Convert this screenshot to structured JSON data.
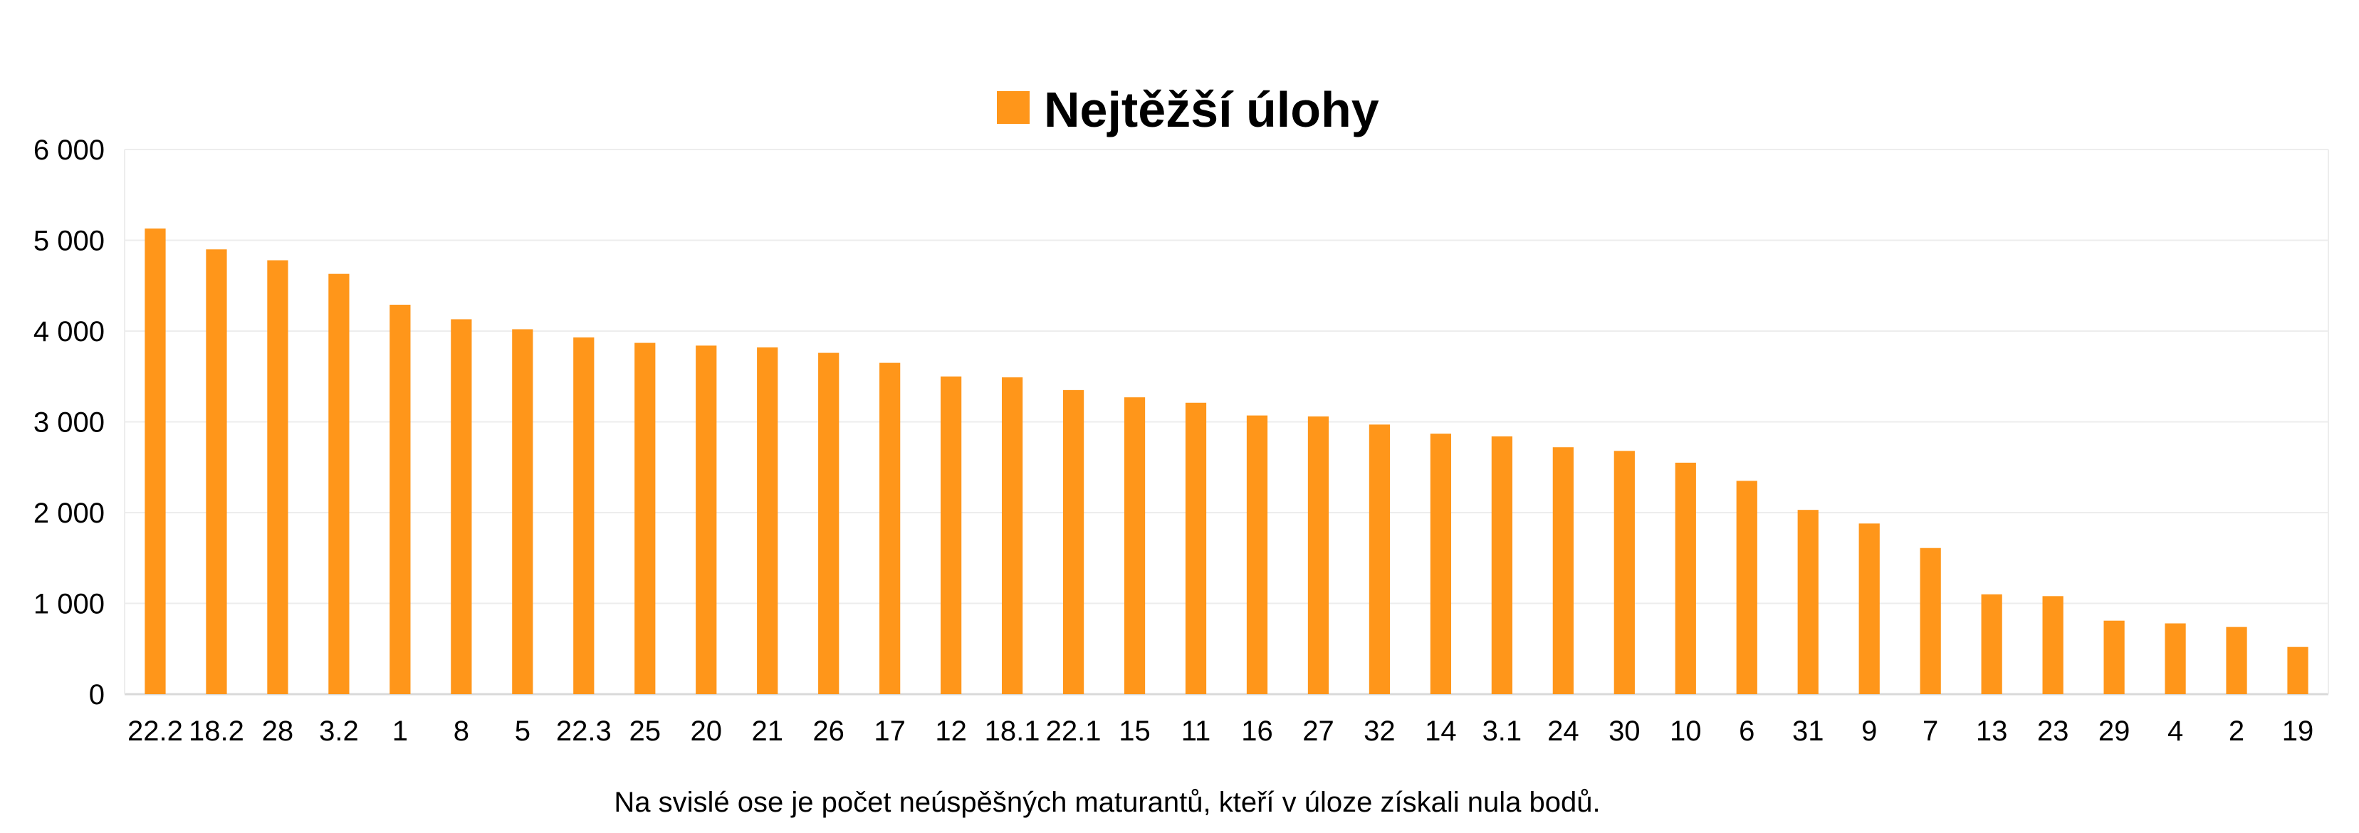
{
  "chart_data": {
    "type": "bar",
    "categories": [
      "22.2",
      "18.2",
      "28",
      "3.2",
      "1",
      "8",
      "5",
      "22.3",
      "25",
      "20",
      "21",
      "26",
      "17",
      "12",
      "18.1",
      "22.1",
      "15",
      "11",
      "16",
      "27",
      "32",
      "14",
      "3.1",
      "24",
      "30",
      "10",
      "6",
      "31",
      "9",
      "7",
      "13",
      "23",
      "29",
      "4",
      "2",
      "19"
    ],
    "series": [
      {
        "name": "Nejtěžší úlohy",
        "values": [
          5130,
          4900,
          4780,
          4630,
          4290,
          4130,
          4020,
          3930,
          3870,
          3840,
          3820,
          3760,
          3650,
          3500,
          3490,
          3350,
          3270,
          3210,
          3070,
          3060,
          2970,
          2870,
          2840,
          2720,
          2680,
          2550,
          2350,
          2030,
          1880,
          1610,
          1100,
          1080,
          810,
          780,
          740,
          520
        ]
      }
    ],
    "title": "",
    "xlabel": "",
    "ylabel": "",
    "ylim": [
      0,
      6000
    ],
    "yticks": [
      "0",
      "1 000",
      "2 000",
      "3 000",
      "4 000",
      "5 000",
      "6 000"
    ],
    "ytick_values": [
      0,
      1000,
      2000,
      3000,
      4000,
      5000,
      6000
    ],
    "grid": true,
    "legend_position": "top-center",
    "note": "Na svislé ose je počet neúspěšných maturantů, kteří v úloze získali nula bodů.",
    "colors": {
      "bar": "#FF961A",
      "grid": "#EDEDED",
      "axis": "#D9D9D9"
    }
  }
}
